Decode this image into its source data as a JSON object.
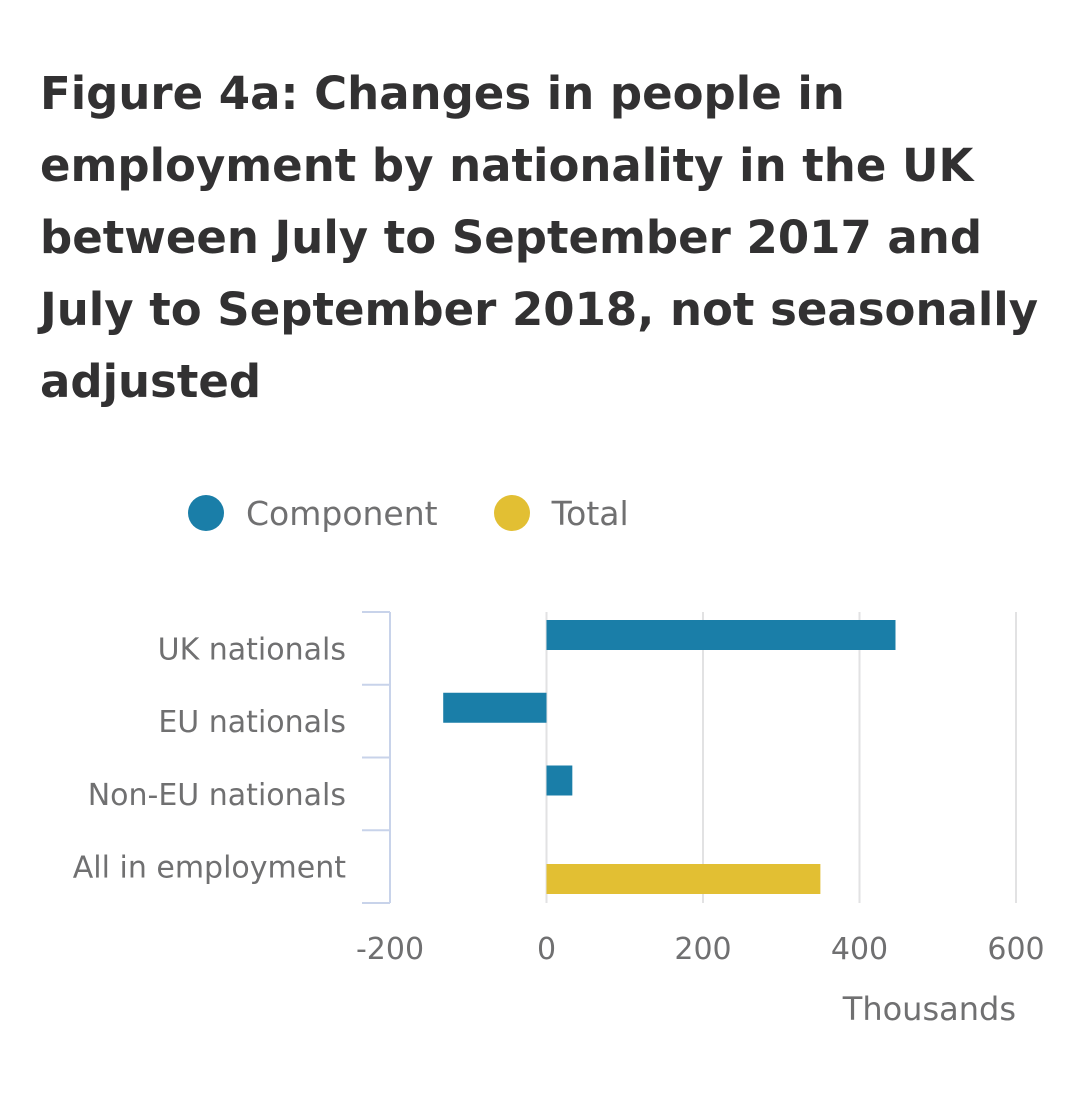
{
  "title": "Figure 4a: Changes in people in employment by nationality in the UK between July to September 2017 and July to September 2018, not seasonally adjusted",
  "legend": [
    {
      "label": "Component",
      "color": "#1a7ea8"
    },
    {
      "label": "Total",
      "color": "#e2bf33"
    }
  ],
  "chart_data": {
    "type": "bar",
    "orientation": "horizontal",
    "categories": [
      "UK nationals",
      "EU nationals",
      "Non-EU nationals",
      "All in employment"
    ],
    "series": [
      {
        "name": "Component",
        "color": "#1a7ea8",
        "values": [
          446,
          -132,
          33,
          null
        ]
      },
      {
        "name": "Total",
        "color": "#e2bf33",
        "values": [
          null,
          null,
          null,
          350
        ]
      }
    ],
    "xlim": [
      -200,
      600
    ],
    "xticks": [
      "-200",
      "0",
      "200",
      "400",
      "600"
    ],
    "xlabel": "Thousands",
    "ylabel": "",
    "grid": true,
    "legend_position": "top"
  }
}
